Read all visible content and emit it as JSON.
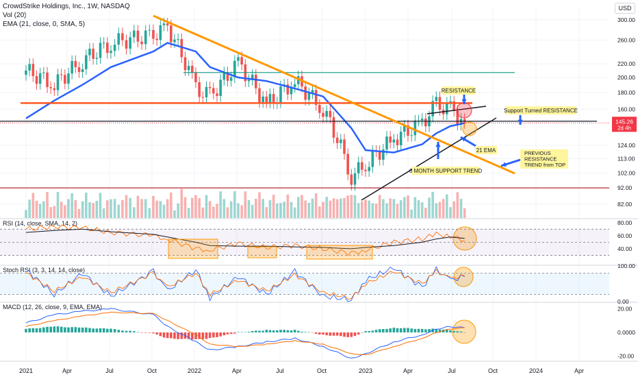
{
  "header": {
    "title": "CrowdStrike Holdings, Inc., 1W, NASDAQ",
    "vol_label": "Vol (20)",
    "ema_label": "EMA (21, close, 0, SMA, 5)",
    "currency_button": "USD"
  },
  "chart_data": [
    {
      "type": "candlestick",
      "title": "CrowdStrike Holdings, Inc., 1W, NASDAQ",
      "y_ticks": [
        300.0,
        260.0,
        220.0,
        200.0,
        180.0,
        160.0,
        145.26,
        124.0,
        113.0,
        102.0,
        92.0,
        82.0
      ],
      "y_tick_labels": [
        "300.00",
        "260.00",
        "220.00",
        "200.00",
        "180.00",
        "160.00",
        "145.26",
        "124.00",
        "113.00",
        "102.00",
        "92.00",
        "82.00"
      ],
      "log_scale": true,
      "ylim": [
        82,
        310
      ],
      "x_tick_labels": [
        "2021",
        "Apr",
        "Jul",
        "Oct",
        "2022",
        "Apr",
        "Jul",
        "Oct",
        "2023",
        "Apr",
        "Jul",
        "Oct",
        "2024",
        "Apr"
      ],
      "last_price": {
        "value": 145.26,
        "label": "145.26",
        "countdown": "2d 4h",
        "color": "#f23645"
      },
      "ohlc_approx": [
        {
          "date": "2021-01",
          "close": 210
        },
        {
          "date": "2021-03",
          "close": 190
        },
        {
          "date": "2021-05",
          "close": 225
        },
        {
          "date": "2021-07",
          "close": 255
        },
        {
          "date": "2021-10",
          "close": 270
        },
        {
          "date": "2021-11",
          "close": 285
        },
        {
          "date": "2022-01",
          "close": 185
        },
        {
          "date": "2022-02",
          "close": 175
        },
        {
          "date": "2022-04",
          "close": 220
        },
        {
          "date": "2022-06",
          "close": 165
        },
        {
          "date": "2022-08",
          "close": 195
        },
        {
          "date": "2022-10",
          "close": 160
        },
        {
          "date": "2022-12",
          "close": 100
        },
        {
          "date": "2023-01",
          "close": 108
        },
        {
          "date": "2023-03",
          "close": 130
        },
        {
          "date": "2023-05",
          "close": 145
        },
        {
          "date": "2023-06",
          "close": 165
        },
        {
          "date": "2023-07",
          "close": 160
        },
        {
          "date": "2023-08",
          "close": 145.26
        }
      ],
      "ema21_approx": [
        150,
        170,
        190,
        215,
        240,
        255,
        240,
        215,
        200,
        195,
        185,
        175,
        140,
        120,
        118,
        125,
        135,
        142,
        145
      ],
      "colors": {
        "up": "#26a69a",
        "down": "#ef5350",
        "ema": "#2962ff"
      },
      "annotations": {
        "resistance": "RESISTANCE",
        "support_turned": "Support Turned RESISTANCE",
        "ema_label": "21 EMA",
        "previous": "PREVIOUS RESISTANCE TREND from TOP",
        "six_month": "6 MONTH SUPPORT TREND"
      },
      "levels": {
        "orange_horizontal": 167,
        "black_horizontal": 147,
        "green_horizontal": 207,
        "red_horizontal": 92
      }
    },
    {
      "type": "area",
      "title": "RSI (14, close, SMA, 14, 2)",
      "y_tick_labels": [
        "80.00",
        "60.00",
        "40.00"
      ],
      "ylim": [
        20,
        85
      ],
      "band": [
        30,
        70
      ],
      "rsi_approx": [
        70,
        74,
        72,
        65,
        60,
        55,
        40,
        38,
        48,
        42,
        45,
        40,
        33,
        38,
        50,
        55,
        62,
        60,
        52
      ],
      "sma_approx": [
        65,
        68,
        70,
        66,
        62,
        58,
        50,
        45,
        44,
        44,
        43,
        42,
        40,
        42,
        45,
        50,
        55,
        58,
        56
      ]
    },
    {
      "type": "line",
      "title": "Stoch RSI (3, 3, 14, 14, close)",
      "y_tick_labels": [
        "100.00",
        "0.00"
      ],
      "ylim": [
        0,
        100
      ],
      "band": [
        20,
        80
      ],
      "k_approx": [
        90,
        20,
        80,
        15,
        85,
        30,
        90,
        10,
        70,
        20,
        85,
        15,
        5,
        60,
        95,
        40,
        90,
        60,
        70
      ],
      "d_approx": [
        80,
        30,
        70,
        25,
        80,
        40,
        80,
        20,
        60,
        30,
        75,
        25,
        10,
        50,
        85,
        50,
        85,
        65,
        72
      ]
    },
    {
      "type": "bar",
      "title": "MACD (12, 26, close, 9, EMA, EMA)",
      "y_tick_labels": [
        "20.00",
        "0.0000",
        "-20.00"
      ],
      "ylim": [
        -25,
        25
      ],
      "macd_approx": [
        8,
        15,
        18,
        20,
        15,
        5,
        -8,
        -15,
        -12,
        -8,
        -5,
        -12,
        -22,
        -18,
        -8,
        -2,
        3,
        5,
        4
      ],
      "signal_approx": [
        5,
        10,
        14,
        17,
        16,
        10,
        -2,
        -10,
        -12,
        -10,
        -7,
        -10,
        -18,
        -19,
        -12,
        -5,
        0,
        3,
        4
      ]
    }
  ]
}
